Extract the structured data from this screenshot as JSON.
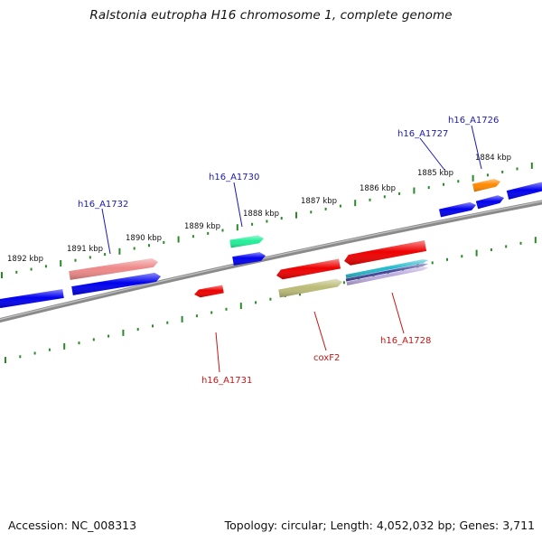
{
  "title": "Ralstonia eutropha H16 chromosome 1, complete genome",
  "footer": {
    "accession": "Accession: NC_008313",
    "topology": "Topology: circular; Length: 4,052,032 bp; Genes: 3,711"
  },
  "colors": {
    "backbone": "#8a8a8a",
    "tick": "#2a8a2a",
    "forward_label": "#1a1ab4",
    "reverse_label": "#c81414"
  },
  "ticks": [
    "1884 kbp",
    "1885 kbp",
    "1886 kbp",
    "1887 kbp",
    "1888 kbp",
    "1889 kbp",
    "1890 kbp",
    "1891 kbp",
    "1892 kbp"
  ],
  "gene_labels": [
    {
      "text": "h16_A1732",
      "strand": "forward"
    },
    {
      "text": "h16_A1730",
      "strand": "forward"
    },
    {
      "text": "h16_A1727",
      "strand": "forward"
    },
    {
      "text": "h16_A1726",
      "strand": "forward"
    },
    {
      "text": "h16_A1731",
      "strand": "reverse"
    },
    {
      "text": "coxF2",
      "strand": "reverse"
    },
    {
      "text": "h16_A1728",
      "strand": "reverse"
    }
  ],
  "features": [
    {
      "color": "#0000ee",
      "direction": "left"
    },
    {
      "color": "#ee8888",
      "direction": "right"
    },
    {
      "color": "#0000ee",
      "direction": "right"
    },
    {
      "color": "#22ee99",
      "direction": "right"
    },
    {
      "color": "#0000ee",
      "direction": "right"
    },
    {
      "color": "#0000ee",
      "direction": "right"
    },
    {
      "color": "#0000ee",
      "direction": "right"
    },
    {
      "color": "#ff8800",
      "direction": "right"
    },
    {
      "color": "#0000ee",
      "direction": "right"
    },
    {
      "color": "#ee0000",
      "direction": "left"
    },
    {
      "color": "#ee0000",
      "direction": "left"
    },
    {
      "color": "#bbbb77",
      "direction": "right"
    },
    {
      "color": "#ee0000",
      "direction": "left"
    },
    {
      "color": "#22bbcc",
      "direction": "right"
    },
    {
      "color": "#444499",
      "direction": "right"
    },
    {
      "color": "#bbaadd",
      "direction": "right"
    }
  ]
}
